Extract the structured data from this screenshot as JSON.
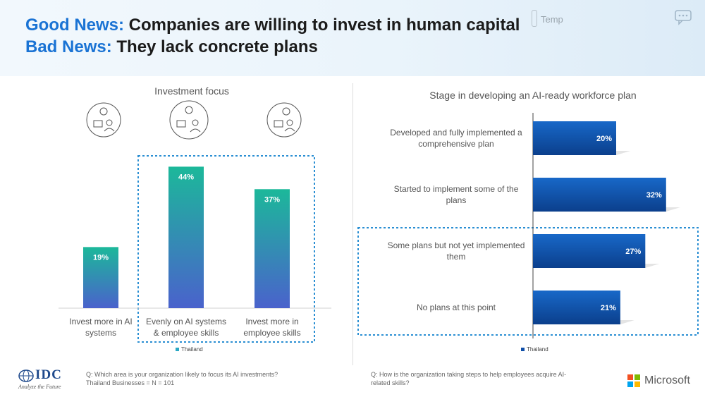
{
  "header": {
    "line1_highlight": "Good News:",
    "line1_text": " Companies are willing to invest in human capital",
    "line2_highlight": "Bad News:",
    "line2_text": " They lack concrete plans",
    "temp_label": "Temp"
  },
  "colors": {
    "highlight": "#1a73d4",
    "left_bar_top": "#1cb89a",
    "left_bar_bottom": "#4a62cc",
    "right_bar": "#0f4ea8",
    "dashed_box": "#2b8fd3"
  },
  "icons": [
    "investment-ai-icon",
    "investment-balanced-icon",
    "investment-skills-icon",
    "chat-icon",
    "thermometer-icon"
  ],
  "chart_data": [
    {
      "type": "bar",
      "title": "Investment focus",
      "categories": [
        "Invest more in AI systems",
        "Evenly on AI systems & employee skills",
        "Invest more in employee skills"
      ],
      "series": [
        {
          "name": "Thailand",
          "values": [
            19,
            44,
            37
          ]
        }
      ],
      "value_labels": [
        "19%",
        "44%",
        "37%"
      ],
      "ylim": [
        0,
        50
      ],
      "legend": "bottom-center",
      "grid": false
    },
    {
      "type": "bar",
      "orientation": "horizontal",
      "title": "Stage in developing an AI-ready workforce plan",
      "categories": [
        "Developed and fully implemented a comprehensive plan",
        "Started to implement some of the plans",
        "Some plans but not yet implemented them",
        "No plans at this point"
      ],
      "series": [
        {
          "name": "Thailand",
          "values": [
            20,
            32,
            27,
            21
          ]
        }
      ],
      "value_labels": [
        "20%",
        "32%",
        "27%",
        "21%"
      ],
      "xlim": [
        0,
        40
      ],
      "legend": "bottom-center",
      "grid": false
    }
  ],
  "footer": {
    "left_question": "Q: Which area is your organization likely to focus its AI investments?",
    "left_base": "Thailand Businesses = N = 101",
    "right_question_1": "Q: How is the organization taking steps to help employees acquire AI-",
    "right_question_2": "related skills?",
    "idc_name": "IDC",
    "idc_tagline": "Analyze the Future",
    "microsoft_name": "Microsoft"
  }
}
